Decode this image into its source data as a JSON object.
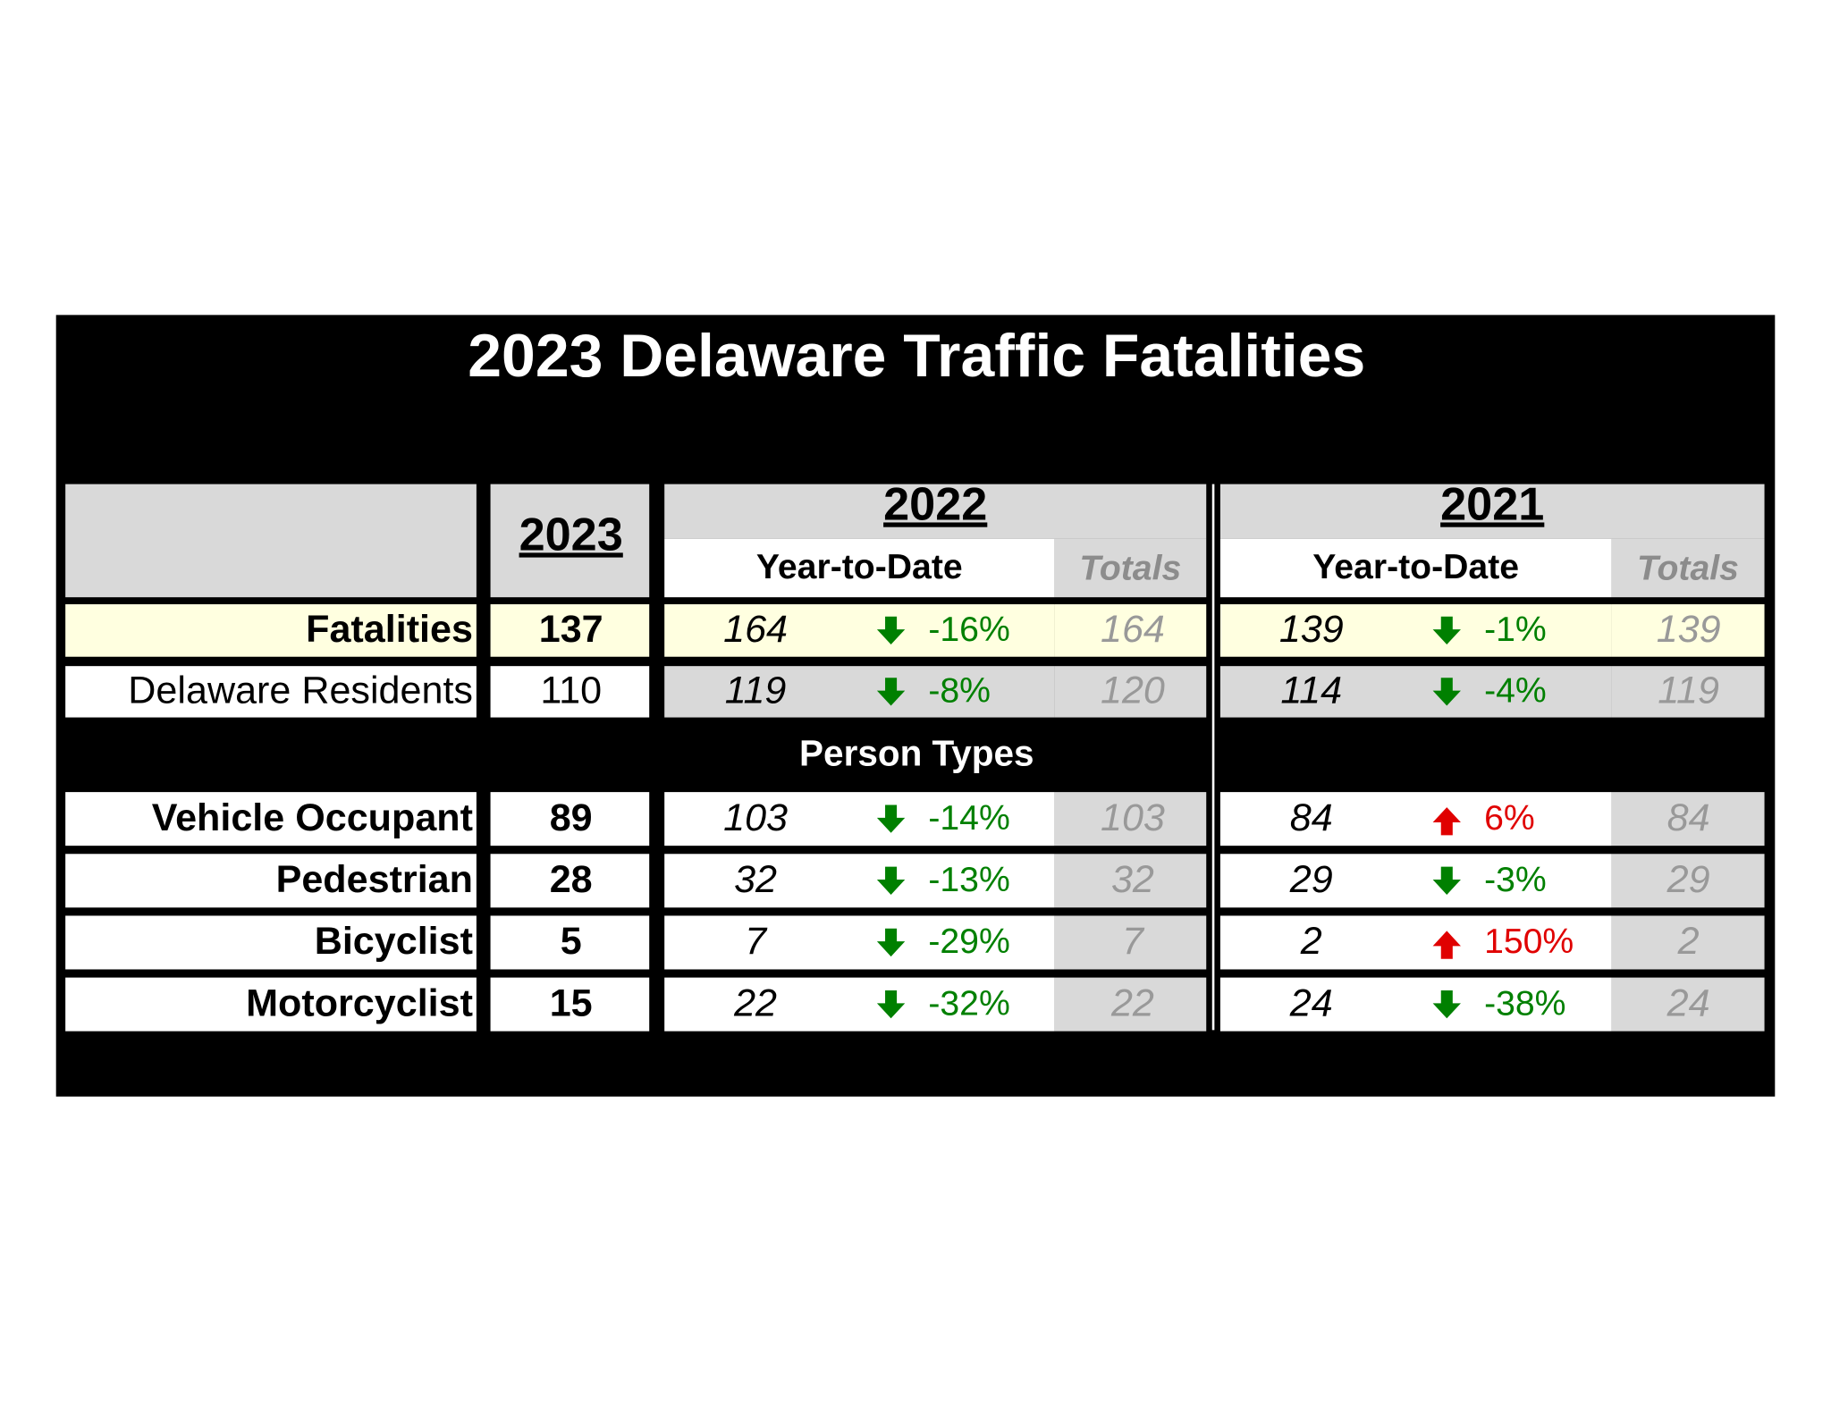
{
  "title": "2023 Delaware Traffic Fatalities",
  "header": {
    "current_year": "2023",
    "years": [
      {
        "year": "2022",
        "ytd": "Year-to-Date",
        "totals": "Totals"
      },
      {
        "year": "2021",
        "ytd": "Year-to-Date",
        "totals": "Totals"
      }
    ]
  },
  "rows": [
    {
      "label": "Fatalities",
      "current": 137,
      "years": [
        {
          "ytd": 164,
          "change": "-16%",
          "total": 164
        },
        {
          "ytd": 139,
          "change": "-1%",
          "total": 139
        }
      ]
    },
    {
      "label": "Delaware Residents",
      "current": 110,
      "years": [
        {
          "ytd": 119,
          "change": "-8%",
          "total": 120
        },
        {
          "ytd": 114,
          "change": "-4%",
          "total": 119
        }
      ]
    }
  ],
  "person_types": {
    "label": "Person Types",
    "rows": [
      {
        "label": "Vehicle Occupant",
        "current": 89,
        "years": [
          {
            "ytd": 103,
            "change": "-14%",
            "total": 103
          },
          {
            "ytd": 84,
            "change": "6%",
            "total": 84
          }
        ]
      },
      {
        "label": "Pedestrian",
        "current": 28,
        "years": [
          {
            "ytd": 32,
            "change": "-13%",
            "total": 32
          },
          {
            "ytd": 29,
            "change": "-3%",
            "total": 29
          }
        ]
      },
      {
        "label": "Bicyclist",
        "current": 5,
        "years": [
          {
            "ytd": 7,
            "change": "-29%",
            "total": 7
          },
          {
            "ytd": 2,
            "change": "150%",
            "total": 2
          }
        ]
      },
      {
        "label": "Motorcyclist",
        "current": 15,
        "years": [
          {
            "ytd": 22,
            "change": "-32%",
            "total": 22
          },
          {
            "ytd": 24,
            "change": "-38%",
            "total": 24
          }
        ]
      }
    ]
  }
}
